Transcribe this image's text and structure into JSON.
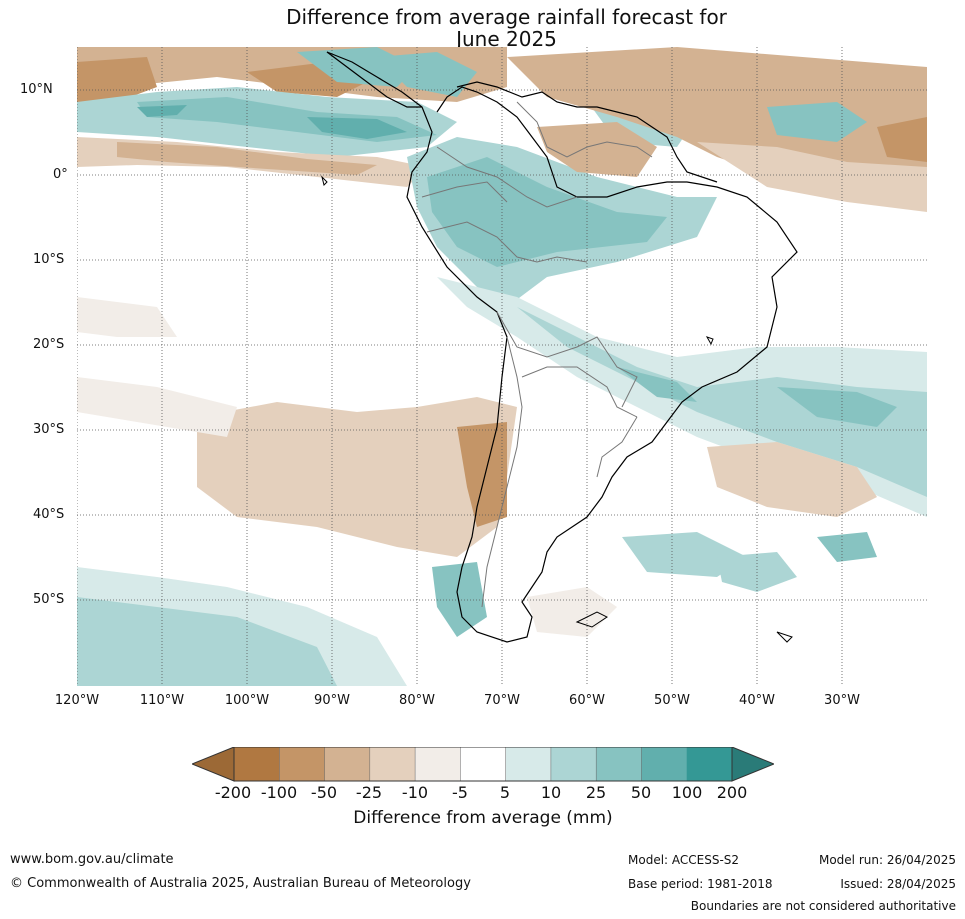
{
  "title_line1": "Difference from average rainfall forecast for",
  "title_line2": "June 2025",
  "map": {
    "lat_labels": [
      "10°N",
      "0°",
      "10°S",
      "20°S",
      "30°S",
      "40°S",
      "50°S"
    ],
    "lon_labels": [
      "120°W",
      "110°W",
      "100°W",
      "90°W",
      "80°W",
      "70°W",
      "60°W",
      "50°W",
      "40°W",
      "30°W"
    ]
  },
  "legend": {
    "title": "Difference from average (mm)",
    "tick_labels": [
      "-200",
      "-100",
      "-50",
      "-25",
      "-10",
      "-5",
      "5",
      "10",
      "25",
      "50",
      "100",
      "200"
    ],
    "colors": [
      "#9c6936",
      "#b07841",
      "#c49567",
      "#d3b292",
      "#e4d0bd",
      "#f2ede8",
      "#ffffff",
      "#d7eae9",
      "#acd5d4",
      "#87c3c1",
      "#61afad",
      "#349895",
      "#2a7b78"
    ]
  },
  "footer": {
    "website": "www.bom.gov.au/climate",
    "copyright": "© Commonwealth of Australia 2025, Australian Bureau of Meteorology",
    "model": "Model: ACCESS-S2",
    "base_period": "Base period: 1981-2018",
    "model_run": "Model run: 26/04/2025",
    "issued": "Issued: 28/04/2025",
    "disclaimer": "Boundaries are not considered authoritative"
  }
}
